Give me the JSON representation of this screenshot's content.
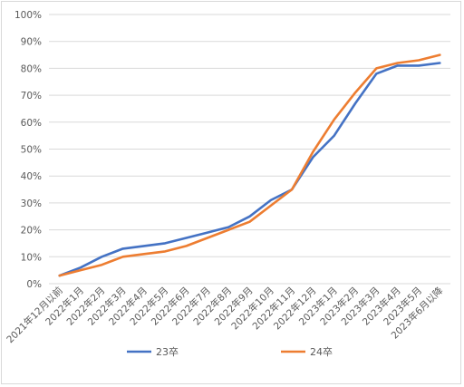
{
  "chart_data": {
    "type": "line",
    "title": "",
    "xlabel": "",
    "ylabel": "",
    "ylim": [
      0,
      1
    ],
    "y_ticks": [
      "0%",
      "10%",
      "20%",
      "30%",
      "40%",
      "50%",
      "60%",
      "70%",
      "80%",
      "90%",
      "100%"
    ],
    "categories": [
      "2021年12月以前",
      "2022年1月",
      "2022年2月",
      "2022年3月",
      "2022年4月",
      "2022年5月",
      "2022年6月",
      "2022年7月",
      "2022年8月",
      "2022年9月",
      "2022年10月",
      "2022年11月",
      "2022年12月",
      "2023年1月",
      "2023年2月",
      "2023年3月",
      "2023年4月",
      "2023年5月",
      "2023年6月以降"
    ],
    "grid": "horizontal",
    "legend_position": "bottom",
    "series": [
      {
        "name": "23卒",
        "color": "#4472C4",
        "values": [
          0.03,
          0.06,
          0.1,
          0.13,
          0.14,
          0.15,
          0.17,
          0.19,
          0.21,
          0.25,
          0.31,
          0.35,
          0.47,
          0.55,
          0.67,
          0.78,
          0.81,
          0.81,
          0.82
        ]
      },
      {
        "name": "24卒",
        "color": "#ED7D31",
        "values": [
          0.03,
          0.05,
          0.07,
          0.1,
          0.11,
          0.12,
          0.14,
          0.17,
          0.2,
          0.23,
          0.29,
          0.35,
          0.49,
          0.61,
          0.71,
          0.8,
          0.82,
          0.83,
          0.85
        ]
      }
    ]
  }
}
